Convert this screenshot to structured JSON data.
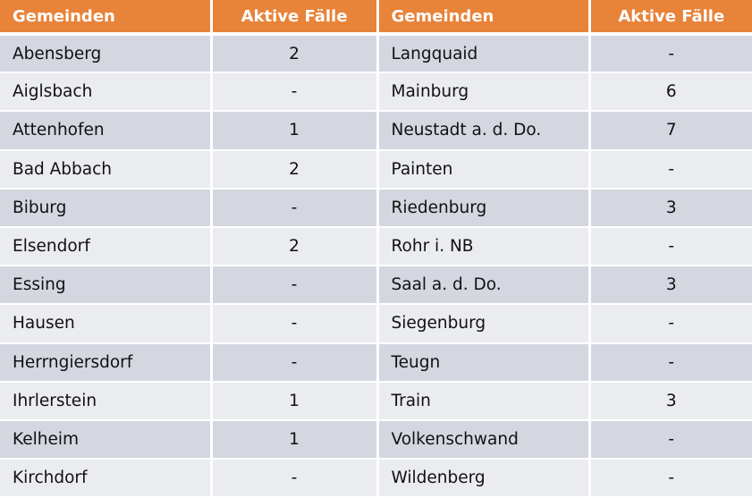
{
  "colors": {
    "header": "#E8833A",
    "row_dark": "#D4D7E0",
    "row_light": "#EBECF0"
  },
  "headers": [
    "Gemeinden",
    "Aktive Fälle",
    "Gemeinden",
    "Aktive Fälle"
  ],
  "rows": [
    [
      "Abensberg",
      "2",
      "Langquaid",
      "-"
    ],
    [
      "Aiglsbach",
      "-",
      "Mainburg",
      "6"
    ],
    [
      "Attenhofen",
      "1",
      "Neustadt a. d. Do.",
      "7"
    ],
    [
      "Bad Abbach",
      "2",
      "Painten",
      "-"
    ],
    [
      "Biburg",
      "-",
      "Riedenburg",
      "3"
    ],
    [
      "Elsendorf",
      "2",
      "Rohr i. NB",
      "-"
    ],
    [
      "Essing",
      "-",
      "Saal a. d. Do.",
      "3"
    ],
    [
      "Hausen",
      "-",
      "Siegenburg",
      "-"
    ],
    [
      "Herrngiersdorf",
      "-",
      "Teugn",
      "-"
    ],
    [
      "Ihrlerstein",
      "1",
      "Train",
      "3"
    ],
    [
      "Kelheim",
      "1",
      "Volkenschwand",
      "-"
    ],
    [
      "Kirchdorf",
      "-",
      "Wildenberg",
      "-"
    ]
  ]
}
